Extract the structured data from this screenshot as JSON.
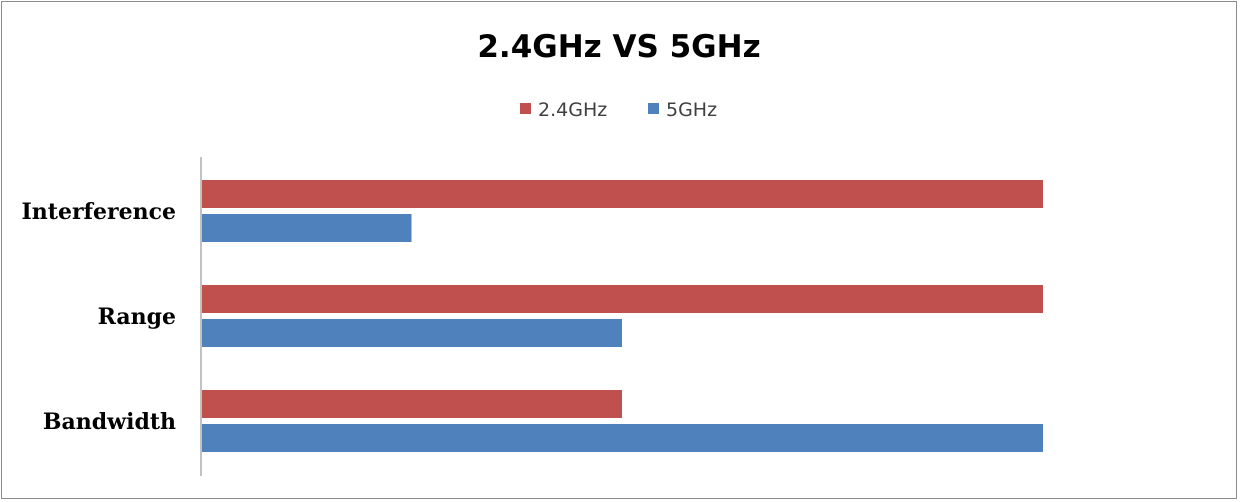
{
  "chart_data": {
    "type": "bar",
    "orientation": "horizontal",
    "title": "2.4GHz VS 5GHz",
    "xlabel": "",
    "ylabel": "",
    "categories": [
      "Interference",
      "Range",
      "Bandwidth"
    ],
    "series": [
      {
        "name": "2.4GHz",
        "color": "#c0504d",
        "values": [
          4,
          4,
          2
        ]
      },
      {
        "name": "5GHz",
        "color": "#4f81bd",
        "values": [
          1,
          2,
          4
        ]
      }
    ],
    "xlim": [
      0,
      4.6
    ],
    "grid": false,
    "legend_position": "top"
  }
}
